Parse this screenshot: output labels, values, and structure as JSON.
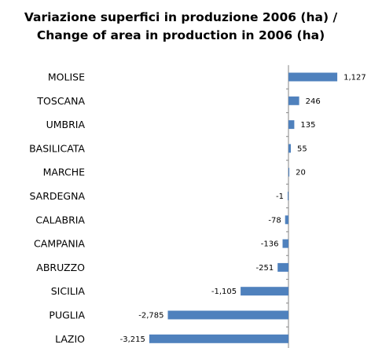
{
  "chart_data": {
    "type": "bar",
    "orientation": "horizontal",
    "title": [
      "Variazione superfici in produzione 2006 (ha) /",
      "Change of area in production in 2006 (ha)"
    ],
    "categories": [
      "MOLISE",
      "TOSCANA",
      "UMBRIA",
      "BASILICATA",
      "MARCHE",
      "SARDEGNA",
      "CALABRIA",
      "CAMPANIA",
      "ABRUZZO",
      "SICILIA",
      "PUGLIA",
      "LAZIO"
    ],
    "values": [
      1127,
      246,
      135,
      55,
      20,
      -1,
      -78,
      -136,
      -251,
      -1105,
      -2785,
      -3215
    ],
    "value_labels": [
      "1,127",
      "246",
      "135",
      "55",
      "20",
      "-1",
      "-78",
      "-136",
      "-251",
      "-1,105",
      "-2,785",
      "-3,215"
    ],
    "bar_color": "#4F81BD",
    "grid": false,
    "legend": "none"
  }
}
